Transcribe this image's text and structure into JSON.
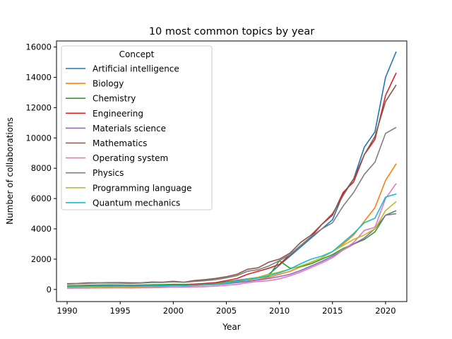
{
  "chart_data": {
    "type": "line",
    "title": "10 most common topics by year",
    "xlabel": "Year",
    "ylabel": "Number of collaborations",
    "xlim": [
      1989,
      2022
    ],
    "ylim": [
      -800,
      16400
    ],
    "xticks": [
      1990,
      1995,
      2000,
      2005,
      2010,
      2015,
      2020
    ],
    "yticks": [
      0,
      2000,
      4000,
      6000,
      8000,
      10000,
      12000,
      14000,
      16000
    ],
    "grid": false,
    "legend": {
      "title": "Concept",
      "position": "upper-left"
    },
    "x": [
      1990,
      1991,
      1992,
      1993,
      1994,
      1995,
      1996,
      1997,
      1998,
      1999,
      2000,
      2001,
      2002,
      2003,
      2004,
      2005,
      2006,
      2007,
      2008,
      2009,
      2010,
      2011,
      2012,
      2013,
      2014,
      2015,
      2016,
      2017,
      2018,
      2019,
      2020,
      2021
    ],
    "series": [
      {
        "name": "Artificial intelligence",
        "color": "#1f77b4",
        "values": [
          200,
          220,
          240,
          250,
          260,
          260,
          250,
          260,
          280,
          300,
          330,
          320,
          350,
          380,
          430,
          500,
          600,
          700,
          800,
          1000,
          1600,
          2200,
          2800,
          3400,
          4000,
          4600,
          6300,
          7300,
          9400,
          10400,
          14000,
          15700
        ]
      },
      {
        "name": "Biology",
        "color": "#ff7f0e",
        "values": [
          150,
          160,
          170,
          180,
          170,
          180,
          160,
          180,
          200,
          190,
          250,
          230,
          260,
          300,
          330,
          400,
          480,
          550,
          650,
          800,
          1000,
          1200,
          1500,
          1800,
          2100,
          2500,
          3000,
          3600,
          4500,
          5400,
          7200,
          8300
        ]
      },
      {
        "name": "Chemistry",
        "color": "#2ca02c",
        "values": [
          250,
          260,
          280,
          290,
          300,
          290,
          280,
          290,
          310,
          320,
          340,
          330,
          350,
          380,
          420,
          480,
          560,
          640,
          750,
          880,
          1900,
          1400,
          1500,
          1700,
          2000,
          2300,
          2700,
          3000,
          3300,
          3800,
          4900,
          5200
        ]
      },
      {
        "name": "Engineering",
        "color": "#d62728",
        "values": [
          150,
          160,
          170,
          170,
          180,
          190,
          200,
          200,
          220,
          240,
          300,
          280,
          340,
          400,
          450,
          580,
          720,
          1000,
          1200,
          1400,
          1650,
          2300,
          2900,
          3500,
          4300,
          4900,
          6400,
          7100,
          8900,
          9900,
          12800,
          14300
        ]
      },
      {
        "name": "Materials science",
        "color": "#9467bd",
        "values": [
          200,
          200,
          210,
          220,
          220,
          230,
          220,
          220,
          230,
          240,
          260,
          250,
          270,
          300,
          330,
          380,
          450,
          530,
          620,
          720,
          850,
          1000,
          1250,
          1550,
          1850,
          2200,
          2600,
          3000,
          3400,
          4000,
          4900,
          5000
        ]
      },
      {
        "name": "Mathematics",
        "color": "#8c564b",
        "values": [
          380,
          400,
          440,
          440,
          450,
          450,
          440,
          440,
          490,
          480,
          540,
          480,
          590,
          650,
          730,
          840,
          1000,
          1330,
          1430,
          1800,
          2000,
          2400,
          3100,
          3600,
          4300,
          5000,
          6200,
          7300,
          8900,
          10100,
          12400,
          13500
        ]
      },
      {
        "name": "Operating system",
        "color": "#e377c2",
        "values": [
          80,
          90,
          90,
          100,
          100,
          110,
          100,
          110,
          120,
          130,
          160,
          150,
          170,
          190,
          220,
          280,
          330,
          450,
          530,
          580,
          700,
          900,
          1150,
          1450,
          1750,
          2100,
          2600,
          3100,
          3900,
          4100,
          6000,
          7000
        ]
      },
      {
        "name": "Physics",
        "color": "#7f7f7f",
        "values": [
          350,
          380,
          400,
          420,
          420,
          410,
          400,
          420,
          460,
          460,
          500,
          470,
          530,
          580,
          650,
          760,
          910,
          1200,
          1300,
          1550,
          1900,
          2300,
          2900,
          3500,
          4000,
          4400,
          5500,
          6400,
          7600,
          8400,
          10300,
          10700
        ]
      },
      {
        "name": "Programming language",
        "color": "#bcbd22",
        "values": [
          150,
          160,
          170,
          170,
          180,
          190,
          190,
          200,
          220,
          230,
          260,
          250,
          280,
          320,
          360,
          450,
          540,
          680,
          800,
          980,
          1150,
          1350,
          1550,
          1800,
          2100,
          2500,
          2900,
          3300,
          3600,
          4000,
          5200,
          5800
        ]
      },
      {
        "name": "Quantum mechanics",
        "color": "#17becf",
        "values": [
          180,
          190,
          200,
          210,
          210,
          220,
          210,
          220,
          230,
          240,
          270,
          260,
          280,
          310,
          350,
          420,
          520,
          650,
          750,
          900,
          1100,
          1350,
          1700,
          2000,
          2200,
          2500,
          3100,
          3700,
          4400,
          4700,
          6100,
          6300
        ]
      }
    ]
  }
}
